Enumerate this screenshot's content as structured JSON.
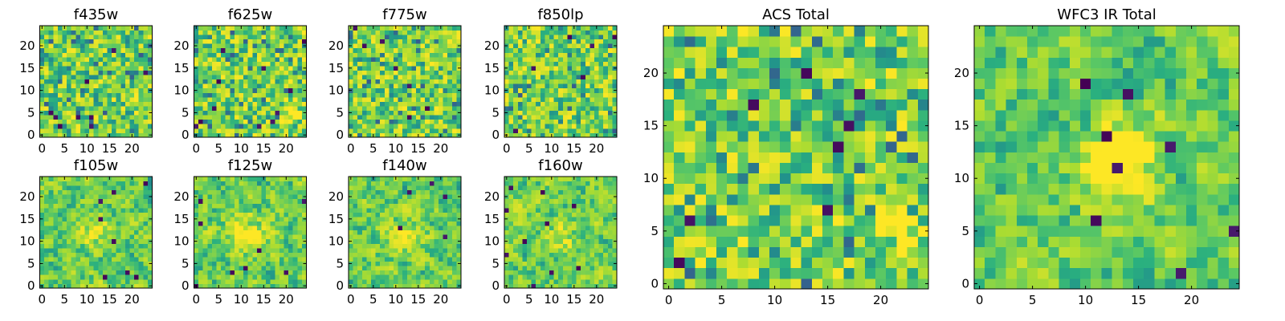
{
  "chart_data": [
    {
      "type": "heatmap",
      "title": "f435w",
      "cols": 25,
      "rows": 25,
      "xlim": [
        -0.5,
        24.5
      ],
      "ylim": [
        -0.5,
        24.5
      ],
      "xticks": [
        0,
        5,
        10,
        15,
        20
      ],
      "yticks": [
        0,
        5,
        10,
        15,
        20
      ],
      "colormap": "viridis",
      "values": []
    },
    {
      "type": "heatmap",
      "title": "f625w",
      "cols": 25,
      "rows": 25,
      "xlim": [
        -0.5,
        24.5
      ],
      "ylim": [
        -0.5,
        24.5
      ],
      "xticks": [
        0,
        5,
        10,
        15,
        20
      ],
      "yticks": [
        0,
        5,
        10,
        15,
        20
      ],
      "colormap": "viridis",
      "values": []
    },
    {
      "type": "heatmap",
      "title": "f775w",
      "cols": 25,
      "rows": 25,
      "xlim": [
        -0.5,
        24.5
      ],
      "ylim": [
        -0.5,
        24.5
      ],
      "xticks": [
        0,
        5,
        10,
        15,
        20
      ],
      "yticks": [
        0,
        5,
        10,
        15,
        20
      ],
      "colormap": "viridis",
      "values": []
    },
    {
      "type": "heatmap",
      "title": "f850lp",
      "cols": 25,
      "rows": 25,
      "xlim": [
        -0.5,
        24.5
      ],
      "ylim": [
        -0.5,
        24.5
      ],
      "xticks": [
        0,
        5,
        10,
        15,
        20
      ],
      "yticks": [
        0,
        5,
        10,
        15,
        20
      ],
      "colormap": "viridis",
      "values": []
    },
    {
      "type": "heatmap",
      "title": "f105w",
      "cols": 25,
      "rows": 25,
      "xlim": [
        -0.5,
        24.5
      ],
      "ylim": [
        -0.5,
        24.5
      ],
      "xticks": [
        0,
        5,
        10,
        15,
        20
      ],
      "yticks": [
        0,
        5,
        10,
        15,
        20
      ],
      "colormap": "viridis",
      "values": []
    },
    {
      "type": "heatmap",
      "title": "f125w",
      "cols": 25,
      "rows": 25,
      "xlim": [
        -0.5,
        24.5
      ],
      "ylim": [
        -0.5,
        24.5
      ],
      "xticks": [
        0,
        5,
        10,
        15,
        20
      ],
      "yticks": [
        0,
        5,
        10,
        15,
        20
      ],
      "colormap": "viridis",
      "values": []
    },
    {
      "type": "heatmap",
      "title": "f140w",
      "cols": 25,
      "rows": 25,
      "xlim": [
        -0.5,
        24.5
      ],
      "ylim": [
        -0.5,
        24.5
      ],
      "xticks": [
        0,
        5,
        10,
        15,
        20
      ],
      "yticks": [
        0,
        5,
        10,
        15,
        20
      ],
      "colormap": "viridis",
      "values": []
    },
    {
      "type": "heatmap",
      "title": "f160w",
      "cols": 25,
      "rows": 25,
      "xlim": [
        -0.5,
        24.5
      ],
      "ylim": [
        -0.5,
        24.5
      ],
      "xticks": [
        0,
        5,
        10,
        15,
        20
      ],
      "yticks": [
        0,
        5,
        10,
        15,
        20
      ],
      "colormap": "viridis",
      "values": []
    },
    {
      "type": "heatmap",
      "title": "ACS Total",
      "cols": 25,
      "rows": 25,
      "xlim": [
        -0.5,
        24.5
      ],
      "ylim": [
        -0.5,
        24.5
      ],
      "xticks": [
        0,
        5,
        10,
        15,
        20
      ],
      "yticks": [
        0,
        5,
        10,
        15,
        20
      ],
      "colormap": "viridis",
      "values": []
    },
    {
      "type": "heatmap",
      "title": "WFC3 IR Total",
      "cols": 25,
      "rows": 25,
      "xlim": [
        -0.5,
        24.5
      ],
      "ylim": [
        -0.5,
        24.5
      ],
      "xticks": [
        0,
        5,
        10,
        15,
        20
      ],
      "yticks": [
        0,
        5,
        10,
        15,
        20
      ],
      "colormap": "viridis",
      "values": []
    }
  ]
}
